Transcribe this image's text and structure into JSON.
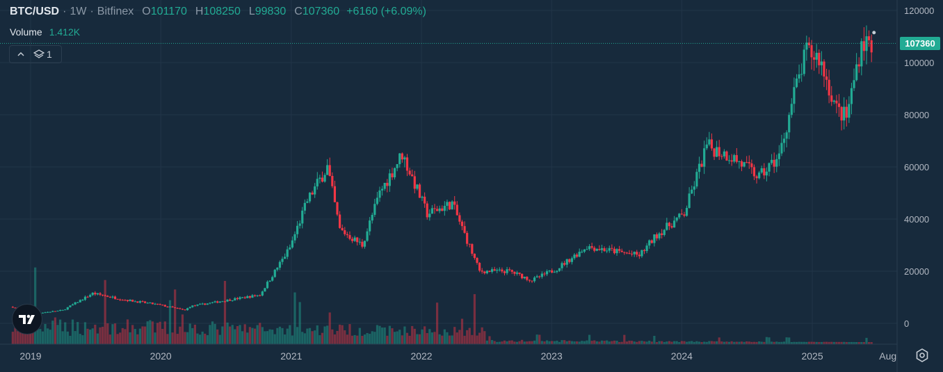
{
  "header": {
    "symbol": "BTC/USD",
    "sep1": "·",
    "interval": "1W",
    "sep2": "·",
    "exchange": "Bitfinex",
    "o_label": "O",
    "o_value": "101170",
    "h_label": "H",
    "h_value": "108250",
    "l_label": "L",
    "l_value": "99830",
    "c_label": "C",
    "c_value": "107360",
    "change": "+6160 (+6.09%)"
  },
  "volume": {
    "label": "Volume",
    "value": "1.412K"
  },
  "indicators": {
    "count": "1"
  },
  "last_price_tag": "107360",
  "colors": {
    "up": "#22ab94",
    "down": "#f23645",
    "background": "#172a3c",
    "grid": "#223548",
    "axis_text": "#b2b8c2"
  },
  "icons": [
    "chevron-up-icon",
    "layers-icon",
    "tradingview-logo-icon",
    "settings-icon"
  ],
  "chart_data": {
    "type": "candlestick",
    "title": "BTC/USD · 1W · Bitfinex",
    "y_ticks": [
      0,
      20000,
      40000,
      60000,
      80000,
      100000,
      120000
    ],
    "y_range": [
      -5000,
      120000
    ],
    "x_ticks": [
      "2019",
      "2020",
      "2021",
      "2022",
      "2023",
      "2024",
      "2025",
      "Aug"
    ],
    "x_range": [
      "2018-11-12",
      "2025-08-25"
    ],
    "last_price": 107360,
    "grid": true,
    "weekly_closes_approx": {
      "dates": [
        "2018-11-12",
        "2019-01-07",
        "2019-04-01",
        "2019-06-24",
        "2019-09-23",
        "2019-12-23",
        "2020-03-09",
        "2020-03-23",
        "2020-07-20",
        "2020-10-05",
        "2020-12-28",
        "2021-02-15",
        "2021-04-12",
        "2021-05-17",
        "2021-07-19",
        "2021-09-06",
        "2021-11-08",
        "2022-01-17",
        "2022-03-28",
        "2022-06-13",
        "2022-09-05",
        "2022-11-07",
        "2023-01-16",
        "2023-04-10",
        "2023-09-04",
        "2023-10-23",
        "2024-01-08",
        "2024-03-11",
        "2024-05-20",
        "2024-08-05",
        "2024-09-30",
        "2024-11-11",
        "2024-12-16",
        "2025-01-20",
        "2025-03-10",
        "2025-04-07",
        "2025-05-19",
        "2025-06-16"
      ],
      "values": [
        6300,
        3700,
        5000,
        11500,
        9000,
        7200,
        5000,
        6500,
        9200,
        10900,
        29000,
        47000,
        60000,
        36000,
        30000,
        50000,
        65000,
        42000,
        46000,
        20000,
        20000,
        16500,
        21000,
        29500,
        26000,
        34000,
        42000,
        68000,
        64000,
        56000,
        64000,
        88000,
        104000,
        102000,
        82000,
        79000,
        108000,
        107360
      ]
    },
    "volume": {
      "peaks_note": "largest weekly volume bars around 2019 and March 2020, declining afterwards"
    }
  }
}
